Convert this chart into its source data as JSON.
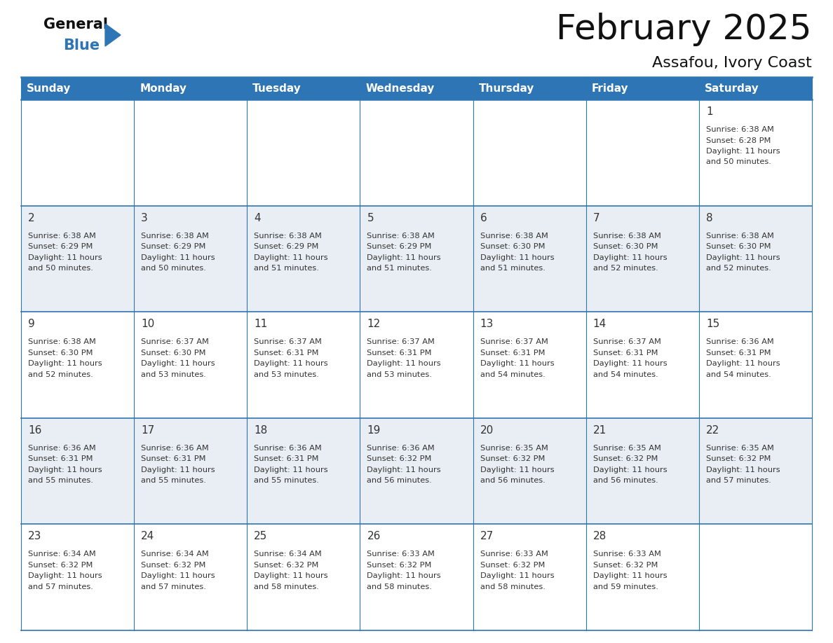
{
  "title": "February 2025",
  "subtitle": "Assafou, Ivory Coast",
  "header_bg_color": "#2e75b6",
  "header_text_color": "#ffffff",
  "line_color": "#2e75b6",
  "cell_text_color": "#333333",
  "day_number_color": "#333333",
  "logo_general_color": "#111111",
  "logo_blue_color": "#2e75b6",
  "logo_triangle_color": "#2e75b6",
  "day_names": [
    "Sunday",
    "Monday",
    "Tuesday",
    "Wednesday",
    "Thursday",
    "Friday",
    "Saturday"
  ],
  "days": [
    {
      "day": 1,
      "col": 6,
      "row": 0,
      "sunrise": "6:38 AM",
      "sunset": "6:28 PM",
      "daylight_hours": 11,
      "daylight_minutes": 50
    },
    {
      "day": 2,
      "col": 0,
      "row": 1,
      "sunrise": "6:38 AM",
      "sunset": "6:29 PM",
      "daylight_hours": 11,
      "daylight_minutes": 50
    },
    {
      "day": 3,
      "col": 1,
      "row": 1,
      "sunrise": "6:38 AM",
      "sunset": "6:29 PM",
      "daylight_hours": 11,
      "daylight_minutes": 50
    },
    {
      "day": 4,
      "col": 2,
      "row": 1,
      "sunrise": "6:38 AM",
      "sunset": "6:29 PM",
      "daylight_hours": 11,
      "daylight_minutes": 51
    },
    {
      "day": 5,
      "col": 3,
      "row": 1,
      "sunrise": "6:38 AM",
      "sunset": "6:29 PM",
      "daylight_hours": 11,
      "daylight_minutes": 51
    },
    {
      "day": 6,
      "col": 4,
      "row": 1,
      "sunrise": "6:38 AM",
      "sunset": "6:30 PM",
      "daylight_hours": 11,
      "daylight_minutes": 51
    },
    {
      "day": 7,
      "col": 5,
      "row": 1,
      "sunrise": "6:38 AM",
      "sunset": "6:30 PM",
      "daylight_hours": 11,
      "daylight_minutes": 52
    },
    {
      "day": 8,
      "col": 6,
      "row": 1,
      "sunrise": "6:38 AM",
      "sunset": "6:30 PM",
      "daylight_hours": 11,
      "daylight_minutes": 52
    },
    {
      "day": 9,
      "col": 0,
      "row": 2,
      "sunrise": "6:38 AM",
      "sunset": "6:30 PM",
      "daylight_hours": 11,
      "daylight_minutes": 52
    },
    {
      "day": 10,
      "col": 1,
      "row": 2,
      "sunrise": "6:37 AM",
      "sunset": "6:30 PM",
      "daylight_hours": 11,
      "daylight_minutes": 53
    },
    {
      "day": 11,
      "col": 2,
      "row": 2,
      "sunrise": "6:37 AM",
      "sunset": "6:31 PM",
      "daylight_hours": 11,
      "daylight_minutes": 53
    },
    {
      "day": 12,
      "col": 3,
      "row": 2,
      "sunrise": "6:37 AM",
      "sunset": "6:31 PM",
      "daylight_hours": 11,
      "daylight_minutes": 53
    },
    {
      "day": 13,
      "col": 4,
      "row": 2,
      "sunrise": "6:37 AM",
      "sunset": "6:31 PM",
      "daylight_hours": 11,
      "daylight_minutes": 54
    },
    {
      "day": 14,
      "col": 5,
      "row": 2,
      "sunrise": "6:37 AM",
      "sunset": "6:31 PM",
      "daylight_hours": 11,
      "daylight_minutes": 54
    },
    {
      "day": 15,
      "col": 6,
      "row": 2,
      "sunrise": "6:36 AM",
      "sunset": "6:31 PM",
      "daylight_hours": 11,
      "daylight_minutes": 54
    },
    {
      "day": 16,
      "col": 0,
      "row": 3,
      "sunrise": "6:36 AM",
      "sunset": "6:31 PM",
      "daylight_hours": 11,
      "daylight_minutes": 55
    },
    {
      "day": 17,
      "col": 1,
      "row": 3,
      "sunrise": "6:36 AM",
      "sunset": "6:31 PM",
      "daylight_hours": 11,
      "daylight_minutes": 55
    },
    {
      "day": 18,
      "col": 2,
      "row": 3,
      "sunrise": "6:36 AM",
      "sunset": "6:31 PM",
      "daylight_hours": 11,
      "daylight_minutes": 55
    },
    {
      "day": 19,
      "col": 3,
      "row": 3,
      "sunrise": "6:36 AM",
      "sunset": "6:32 PM",
      "daylight_hours": 11,
      "daylight_minutes": 56
    },
    {
      "day": 20,
      "col": 4,
      "row": 3,
      "sunrise": "6:35 AM",
      "sunset": "6:32 PM",
      "daylight_hours": 11,
      "daylight_minutes": 56
    },
    {
      "day": 21,
      "col": 5,
      "row": 3,
      "sunrise": "6:35 AM",
      "sunset": "6:32 PM",
      "daylight_hours": 11,
      "daylight_minutes": 56
    },
    {
      "day": 22,
      "col": 6,
      "row": 3,
      "sunrise": "6:35 AM",
      "sunset": "6:32 PM",
      "daylight_hours": 11,
      "daylight_minutes": 57
    },
    {
      "day": 23,
      "col": 0,
      "row": 4,
      "sunrise": "6:34 AM",
      "sunset": "6:32 PM",
      "daylight_hours": 11,
      "daylight_minutes": 57
    },
    {
      "day": 24,
      "col": 1,
      "row": 4,
      "sunrise": "6:34 AM",
      "sunset": "6:32 PM",
      "daylight_hours": 11,
      "daylight_minutes": 57
    },
    {
      "day": 25,
      "col": 2,
      "row": 4,
      "sunrise": "6:34 AM",
      "sunset": "6:32 PM",
      "daylight_hours": 11,
      "daylight_minutes": 58
    },
    {
      "day": 26,
      "col": 3,
      "row": 4,
      "sunrise": "6:33 AM",
      "sunset": "6:32 PM",
      "daylight_hours": 11,
      "daylight_minutes": 58
    },
    {
      "day": 27,
      "col": 4,
      "row": 4,
      "sunrise": "6:33 AM",
      "sunset": "6:32 PM",
      "daylight_hours": 11,
      "daylight_minutes": 58
    },
    {
      "day": 28,
      "col": 5,
      "row": 4,
      "sunrise": "6:33 AM",
      "sunset": "6:32 PM",
      "daylight_hours": 11,
      "daylight_minutes": 59
    }
  ],
  "num_rows": 5,
  "num_cols": 7,
  "figwidth": 11.88,
  "figheight": 9.18,
  "dpi": 100
}
